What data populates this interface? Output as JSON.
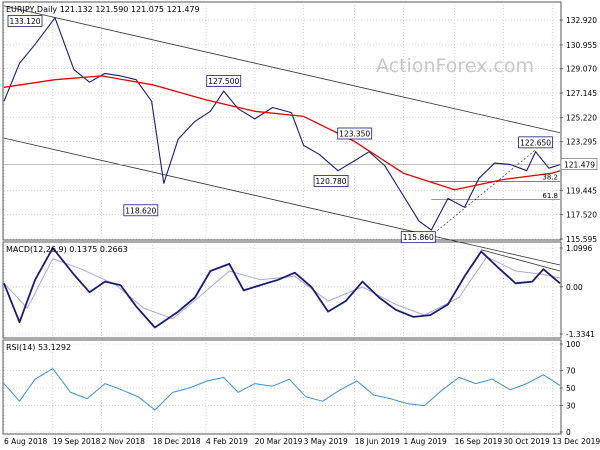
{
  "chart_data": [
    {
      "type": "line",
      "panel": "price",
      "header": "EURJPY,Daily  121.132 121.590 121.075 121.479",
      "watermark": "ActionForex.com",
      "ylim": [
        115.595,
        133.4
      ],
      "yticks": [
        {
          "value": 132.92,
          "label": "132.920"
        },
        {
          "value": 130.955,
          "label": "130.955"
        },
        {
          "value": 129.07,
          "label": "129.070"
        },
        {
          "value": 127.145,
          "label": "127.145"
        },
        {
          "value": 125.22,
          "label": "125.220"
        },
        {
          "value": 123.295,
          "label": "123.295"
        },
        {
          "value": 119.445,
          "label": "119.445"
        },
        {
          "value": 117.52,
          "label": "117.520"
        },
        {
          "value": 115.595,
          "label": "115.595"
        }
      ],
      "last_price": {
        "value": 121.479,
        "label": "121.479"
      },
      "fib_levels": [
        {
          "value": 120.15,
          "label": "38.2"
        },
        {
          "value": 118.7,
          "label": "61.8"
        }
      ],
      "annotations": [
        {
          "label": "133.120",
          "date": "2018-09-21",
          "value": 133.12
        },
        {
          "label": "127.500",
          "date": "2019-02-20",
          "value": 127.5
        },
        {
          "label": "123.350",
          "date": "2019-06-18",
          "value": 123.35
        },
        {
          "label": "120.780",
          "date": "2019-06-03",
          "value": 120.78
        },
        {
          "label": "118.620",
          "date": "2018-12-28",
          "value": 118.62
        },
        {
          "label": "115.860",
          "date": "2019-08-26",
          "value": 115.86
        },
        {
          "label": "122.650",
          "date": "2019-11-28",
          "value": 122.65
        }
      ],
      "series": [
        {
          "name": "",
          "x": [
            "2018-08-06",
            "2018-08-20",
            "2018-09-03",
            "2018-09-21",
            "2018-10-08",
            "2018-10-22",
            "2018-11-05",
            "2018-11-19",
            "2018-12-03",
            "2018-12-17",
            "2018-12-28",
            "2019-01-10",
            "2019-01-25",
            "2019-02-08",
            "2019-02-20",
            "2019-03-05",
            "2019-03-20",
            "2019-04-05",
            "2019-04-22",
            "2019-05-03",
            "2019-05-17",
            "2019-06-03",
            "2019-06-18",
            "2019-07-01",
            "2019-07-15",
            "2019-08-01",
            "2019-08-15",
            "2019-08-26",
            "2019-09-10",
            "2019-09-25",
            "2019-10-08",
            "2019-10-22",
            "2019-11-05",
            "2019-11-20",
            "2019-11-28",
            "2019-12-10",
            "2019-12-20"
          ],
          "values": [
            126.5,
            129.5,
            131.0,
            133.1,
            129.0,
            128.0,
            128.7,
            128.5,
            128.2,
            126.5,
            120.0,
            123.5,
            124.9,
            125.7,
            127.3,
            125.9,
            125.1,
            126.0,
            125.6,
            123.0,
            122.3,
            121.0,
            121.8,
            122.5,
            121.4,
            119.0,
            117.0,
            116.3,
            118.8,
            118.1,
            120.4,
            121.6,
            121.5,
            121.0,
            122.5,
            121.2,
            121.479
          ]
        },
        {
          "name": "",
          "x": [
            "2018-08-06",
            "2018-09-21",
            "2018-11-02",
            "2018-12-18",
            "2019-02-04",
            "2019-03-20",
            "2019-05-03",
            "2019-06-18",
            "2019-08-01",
            "2019-09-16",
            "2019-10-30",
            "2019-12-13",
            "2019-12-20"
          ],
          "values": [
            127.6,
            128.2,
            128.5,
            127.8,
            126.6,
            125.7,
            125.3,
            123.3,
            120.8,
            119.5,
            120.3,
            120.8,
            121.0
          ]
        }
      ]
    },
    {
      "type": "line",
      "panel": "macd",
      "header": "MACD(12,26,9) 0.1375 0.2663",
      "ylim": [
        -1.3341,
        1.0996
      ],
      "yticks": [
        {
          "value": 1.0996,
          "label": "1.0996"
        },
        {
          "value": 0.0,
          "label": "0.00"
        },
        {
          "value": -1.3341,
          "label": "-1.3341"
        }
      ],
      "series": [
        {
          "name": "",
          "x": [
            "2018-08-06",
            "2018-08-20",
            "2018-09-03",
            "2018-09-19",
            "2018-10-08",
            "2018-10-22",
            "2018-11-05",
            "2018-11-19",
            "2018-12-03",
            "2018-12-20",
            "2019-01-10",
            "2019-01-25",
            "2019-02-08",
            "2019-02-25",
            "2019-03-10",
            "2019-03-25",
            "2019-04-10",
            "2019-04-25",
            "2019-05-10",
            "2019-05-25",
            "2019-06-10",
            "2019-06-25",
            "2019-07-10",
            "2019-07-25",
            "2019-08-10",
            "2019-08-25",
            "2019-09-10",
            "2019-09-25",
            "2019-10-10",
            "2019-10-25",
            "2019-11-10",
            "2019-11-25",
            "2019-12-05",
            "2019-12-20"
          ],
          "values": [
            0.1,
            -1.0,
            0.2,
            1.1,
            0.35,
            -0.15,
            0.15,
            0.05,
            -0.55,
            -1.15,
            -0.7,
            -0.3,
            0.45,
            0.65,
            -0.1,
            0.05,
            0.2,
            0.4,
            0.0,
            -0.7,
            -0.4,
            0.15,
            -0.3,
            -0.65,
            -0.85,
            -0.8,
            -0.5,
            0.3,
            1.0,
            0.55,
            0.1,
            0.15,
            0.5,
            0.1
          ]
        },
        {
          "name": "",
          "x": [
            "2018-08-06",
            "2018-08-27",
            "2018-09-19",
            "2018-10-15",
            "2018-11-15",
            "2018-12-10",
            "2019-01-05",
            "2019-02-01",
            "2019-02-25",
            "2019-03-25",
            "2019-04-25",
            "2019-05-25",
            "2019-06-25",
            "2019-07-25",
            "2019-08-20",
            "2019-09-20",
            "2019-10-15",
            "2019-11-10",
            "2019-12-05",
            "2019-12-20"
          ],
          "values": [
            0.1,
            -0.6,
            0.8,
            0.5,
            0.05,
            -0.6,
            -0.9,
            -0.2,
            0.45,
            0.2,
            0.3,
            -0.4,
            0.0,
            -0.5,
            -0.8,
            -0.3,
            0.85,
            0.45,
            0.35,
            0.25
          ]
        }
      ],
      "trendline": {
        "x": [
          "2019-10-10",
          "2019-12-20"
        ],
        "values": [
          1.05,
          0.45
        ]
      }
    },
    {
      "type": "line",
      "panel": "rsi",
      "header": "RSI(14) 53.1292",
      "ylim": [
        0,
        100
      ],
      "yticks": [
        {
          "value": 100,
          "label": "100"
        },
        {
          "value": 70,
          "label": "70"
        },
        {
          "value": 50,
          "label": "50"
        },
        {
          "value": 30,
          "label": "30"
        },
        {
          "value": 0,
          "label": "0"
        }
      ],
      "series": [
        {
          "name": "",
          "x": [
            "2018-08-06",
            "2018-08-20",
            "2018-09-03",
            "2018-09-19",
            "2018-10-05",
            "2018-10-20",
            "2018-11-05",
            "2018-11-20",
            "2018-12-05",
            "2018-12-20",
            "2019-01-05",
            "2019-01-20",
            "2019-02-05",
            "2019-02-20",
            "2019-03-05",
            "2019-03-20",
            "2019-04-05",
            "2019-04-20",
            "2019-05-05",
            "2019-05-20",
            "2019-06-05",
            "2019-06-20",
            "2019-07-05",
            "2019-07-20",
            "2019-08-05",
            "2019-08-20",
            "2019-09-05",
            "2019-09-20",
            "2019-10-05",
            "2019-10-20",
            "2019-11-05",
            "2019-11-20",
            "2019-12-05",
            "2019-12-20"
          ],
          "values": [
            55,
            35,
            60,
            72,
            45,
            38,
            55,
            48,
            40,
            25,
            45,
            50,
            58,
            62,
            45,
            55,
            52,
            60,
            40,
            35,
            48,
            58,
            42,
            38,
            32,
            30,
            48,
            62,
            55,
            60,
            48,
            55,
            65,
            53
          ]
        }
      ]
    }
  ],
  "x_axis": {
    "start": "2018-08-06",
    "end": "2019-12-20",
    "ticks": [
      {
        "date": "2018-08-06",
        "label": "6 Aug 2018"
      },
      {
        "date": "2018-09-19",
        "label": "19 Sep 2018"
      },
      {
        "date": "2018-11-02",
        "label": "2 Nov 2018"
      },
      {
        "date": "2018-12-18",
        "label": "18 Dec 2018"
      },
      {
        "date": "2019-02-04",
        "label": "4 Feb 2019"
      },
      {
        "date": "2019-03-20",
        "label": "20 Mar 2019"
      },
      {
        "date": "2019-05-03",
        "label": "3 May 2019"
      },
      {
        "date": "2019-06-18",
        "label": "18 Jun 2019"
      },
      {
        "date": "2019-08-01",
        "label": "1 Aug 2019"
      },
      {
        "date": "2019-09-16",
        "label": "16 Sep 2019"
      },
      {
        "date": "2019-10-30",
        "label": "30 Oct 2019"
      },
      {
        "date": "2019-12-13",
        "label": "13 Dec 2019"
      }
    ]
  },
  "colors": {
    "price": "#1a1a7a",
    "ma": "#e60000",
    "macd": "#1a1a7a",
    "signal": "#a8a8d8",
    "rsi": "#3d8fd8",
    "channel": "#333333",
    "grid": "#bbbbbb",
    "annotation_border": "#1a1a7a"
  }
}
